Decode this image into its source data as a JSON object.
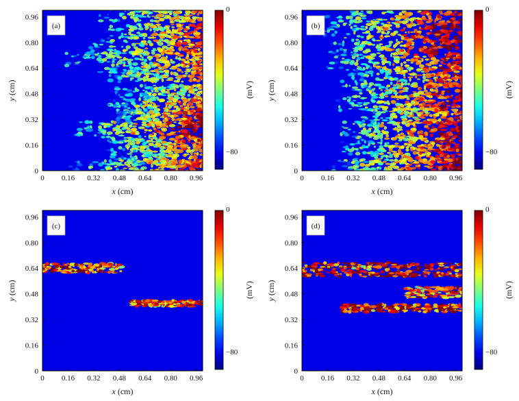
{
  "chart_data": [
    {
      "type": "heatmap",
      "panel_label": "(a)",
      "xlabel_var": "x",
      "xlabel_unit": " (cm)",
      "ylabel_var": "y",
      "ylabel_unit": " (cm)",
      "xlim": [
        0,
        1.0
      ],
      "ylim": [
        0,
        1.0
      ],
      "xticks": [
        "0",
        "0.16",
        "0.32",
        "0.48",
        "0.64",
        "0.80",
        "0.96"
      ],
      "yticks": [
        "0",
        "0.16",
        "0.32",
        "0.48",
        "0.64",
        "0.80",
        "0.96"
      ],
      "colorbar": {
        "label": "(mV)",
        "min": -90,
        "max": 0,
        "tick_labels": [
          "0",
          "−80"
        ],
        "tick_values": [
          0,
          -80
        ]
      },
      "activity_bands": [
        {
          "y": 0.97,
          "x_start": 0.35,
          "intensity": 0.5
        },
        {
          "y": 0.87,
          "x_start": 0.4,
          "intensity": 0.6
        },
        {
          "y": 0.77,
          "x_start": 0.3,
          "intensity": 0.6
        },
        {
          "y": 0.69,
          "x_start": 0.1,
          "intensity": 0.5
        },
        {
          "y": 0.6,
          "x_start": 0.35,
          "intensity": 0.5
        },
        {
          "y": 0.49,
          "x_start": 0.45,
          "intensity": 0.4
        },
        {
          "y": 0.4,
          "x_start": 0.4,
          "intensity": 0.6
        },
        {
          "y": 0.32,
          "x_start": 0.45,
          "intensity": 0.7
        },
        {
          "y": 0.26,
          "x_start": 0.17,
          "intensity": 0.8
        },
        {
          "y": 0.17,
          "x_start": 0.35,
          "intensity": 0.6
        },
        {
          "y": 0.08,
          "x_start": 0.4,
          "intensity": 0.5
        },
        {
          "y": 0.02,
          "x_start": 0.17,
          "intensity": 0.6
        }
      ]
    },
    {
      "type": "heatmap",
      "panel_label": "(b)",
      "xlabel_var": "x",
      "xlabel_unit": " (cm)",
      "ylabel_var": "y",
      "ylabel_unit": " (cm)",
      "xlim": [
        0,
        1.0
      ],
      "ylim": [
        0,
        1.0
      ],
      "xticks": [
        "0",
        "0.16",
        "0.32",
        "0.48",
        "0.64",
        "0.80",
        "0.96"
      ],
      "yticks": [
        "0",
        "0.16",
        "0.32",
        "0.48",
        "0.64",
        "0.80",
        "0.96"
      ],
      "colorbar": {
        "label": "(mV)",
        "min": -90,
        "max": 0,
        "tick_labels": [
          "0",
          "−80"
        ],
        "tick_values": [
          0,
          -80
        ]
      },
      "activity_bands": [
        {
          "y": 0.95,
          "x_start": 0.15,
          "intensity": 0.7
        },
        {
          "y": 0.86,
          "x_start": 0.1,
          "intensity": 0.8
        },
        {
          "y": 0.77,
          "x_start": 0.15,
          "intensity": 0.8
        },
        {
          "y": 0.68,
          "x_start": 0.15,
          "intensity": 0.7
        },
        {
          "y": 0.6,
          "x_start": 0.25,
          "intensity": 0.6
        },
        {
          "y": 0.5,
          "x_start": 0.2,
          "intensity": 0.7
        },
        {
          "y": 0.42,
          "x_start": 0.2,
          "intensity": 0.7
        },
        {
          "y": 0.34,
          "x_start": 0.3,
          "intensity": 0.6
        },
        {
          "y": 0.26,
          "x_start": 0.2,
          "intensity": 0.8
        },
        {
          "y": 0.17,
          "x_start": 0.25,
          "intensity": 0.7
        },
        {
          "y": 0.09,
          "x_start": 0.25,
          "intensity": 0.7
        },
        {
          "y": 0.02,
          "x_start": 0.15,
          "intensity": 0.8
        }
      ]
    },
    {
      "type": "heatmap",
      "panel_label": "(c)",
      "xlabel_var": "x",
      "xlabel_unit": " (cm)",
      "ylabel_var": "y",
      "ylabel_unit": " (cm)",
      "xlim": [
        0,
        1.0
      ],
      "ylim": [
        0,
        1.0
      ],
      "xticks": [
        "0",
        "0.16",
        "0.32",
        "0.48",
        "0.64",
        "0.80",
        "0.96"
      ],
      "yticks": [
        "0",
        "0.16",
        "0.32",
        "0.48",
        "0.64",
        "0.80",
        "0.96"
      ],
      "colorbar": {
        "label": "(mV)",
        "min": -90,
        "max": 0,
        "tick_labels": [
          "0",
          "−80"
        ],
        "tick_values": [
          0,
          -80
        ]
      },
      "activity_regions": [
        {
          "x0": 0.0,
          "x1": 0.5,
          "y": 0.64,
          "width": 0.06,
          "intensity": 0.7
        },
        {
          "x0": 0.55,
          "x1": 1.0,
          "y": 0.42,
          "width": 0.04,
          "intensity": 0.7
        }
      ]
    },
    {
      "type": "heatmap",
      "panel_label": "(d)",
      "xlabel_var": "x",
      "xlabel_unit": " (cm)",
      "ylabel_var": "y",
      "ylabel_unit": " (cm)",
      "xlim": [
        0,
        1.0
      ],
      "ylim": [
        0,
        1.0
      ],
      "xticks": [
        "0",
        "0.16",
        "0.32",
        "0.48",
        "0.64",
        "0.80",
        "0.96"
      ],
      "yticks": [
        "0",
        "0.16",
        "0.32",
        "0.48",
        "0.64",
        "0.80",
        "0.96"
      ],
      "colorbar": {
        "label": "(mV)",
        "min": -90,
        "max": 0,
        "tick_labels": [
          "0",
          "−80"
        ],
        "tick_values": [
          0,
          -80
        ]
      },
      "activity_regions": [
        {
          "x0": 0.0,
          "x1": 1.0,
          "y": 0.63,
          "width": 0.09,
          "intensity": 0.8
        },
        {
          "x0": 0.65,
          "x1": 1.0,
          "y": 0.49,
          "width": 0.07,
          "intensity": 0.6
        },
        {
          "x0": 0.25,
          "x1": 1.0,
          "y": 0.39,
          "width": 0.05,
          "intensity": 0.9
        }
      ]
    }
  ]
}
